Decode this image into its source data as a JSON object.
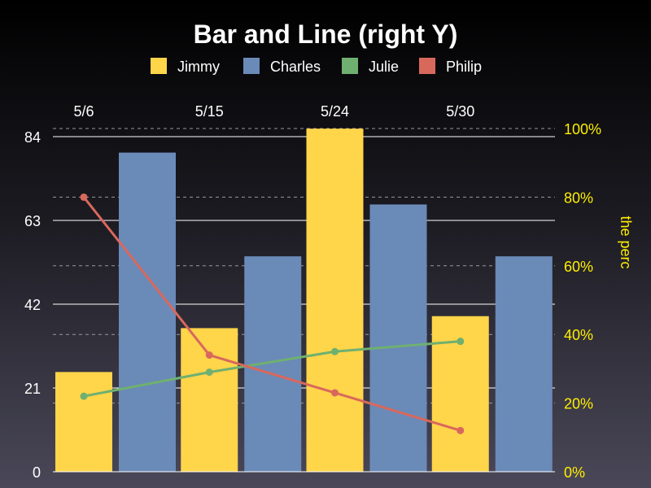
{
  "chart_data": {
    "type": "bar",
    "title": "Bar and Line (right Y)",
    "categories": [
      "5/6",
      "5/15",
      "5/24",
      "5/30"
    ],
    "x_axis_position": "top",
    "legend_position": "top-center",
    "left_axis": {
      "ylim": [
        0,
        84
      ],
      "ticks": [
        0,
        21,
        42,
        63,
        84
      ],
      "grid": true
    },
    "right_axis": {
      "ylabel": "the perc",
      "ylim": [
        0,
        1
      ],
      "ticks": [
        0,
        0.2,
        0.4,
        0.6,
        0.8,
        1.0
      ],
      "tick_labels": [
        "0%",
        "20%",
        "40%",
        "60%",
        "80%",
        "100%"
      ],
      "grid": "dashed",
      "label_color": "#ffee00"
    },
    "bar_series": [
      {
        "name": "Jimmy",
        "color": "#ffd54a",
        "values": [
          25,
          36,
          86,
          39
        ]
      },
      {
        "name": "Charles",
        "color": "#6a8ab8",
        "values": [
          80,
          54,
          67,
          54
        ]
      }
    ],
    "line_series": [
      {
        "name": "Julie",
        "color": "#6fb070",
        "axis": "right",
        "values": [
          0.22,
          0.29,
          0.35,
          0.38
        ]
      },
      {
        "name": "Philip",
        "color": "#d9685c",
        "axis": "right",
        "values": [
          0.8,
          0.34,
          0.23,
          0.12
        ]
      }
    ],
    "legend": [
      "Jimmy",
      "Charles",
      "Julie",
      "Philip"
    ]
  }
}
